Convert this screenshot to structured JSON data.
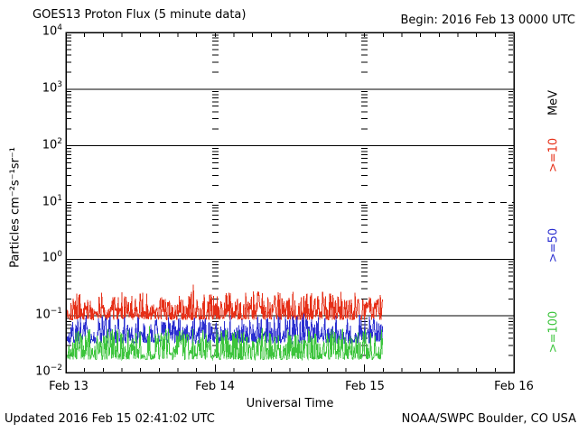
{
  "footer": {
    "updated": "Updated 2016 Feb 15 02:41:02 UTC",
    "credit": "NOAA/SWPC Boulder, CO USA"
  },
  "chart_data": {
    "type": "line",
    "title": "GOES13 Proton Flux (5 minute data)",
    "begin_label": "Begin: 2016 Feb 13 0000 UTC",
    "xlabel": "Universal Time",
    "ylabel": "Particles cm⁻²s⁻¹sr⁻¹",
    "right_axis_label": "MeV",
    "x_tick_labels": [
      "Feb 13",
      "Feb 14",
      "Feb 15",
      "Feb 16"
    ],
    "x_range_days": 3,
    "x_minor_tick_hours": 3,
    "y_scale": "log",
    "y_exponent_ticks": [
      4,
      3,
      2,
      1,
      0,
      -1,
      -2
    ],
    "ylim": [
      0.01,
      10000
    ],
    "grid": {
      "solid_decades": [
        3,
        2,
        0,
        -1
      ],
      "dashed_decades": [
        1
      ],
      "day_boundary_tick_columns": [
        1,
        2
      ]
    },
    "threshold_line": {
      "value": 10,
      "style": "dashed"
    },
    "interval_minutes": 5,
    "data_start_days": 0,
    "data_end_days": 2.12,
    "legend_position": "right",
    "series": [
      {
        "name": ">=10 MeV",
        "legend": ">=10",
        "color": "#e62f17",
        "baseline": 0.085,
        "spread": 3.2,
        "spike_prob": 0.02,
        "spike_mult": 1.6,
        "seed": 101,
        "approx_mean": 0.12,
        "approx_range": [
          0.085,
          0.45
        ]
      },
      {
        "name": ">=50 MeV",
        "legend": ">=50",
        "color": "#2b2fd0",
        "baseline": 0.033,
        "spread": 3.0,
        "spike_prob": 0.02,
        "spike_mult": 1.5,
        "seed": 202,
        "approx_mean": 0.05,
        "approx_range": [
          0.033,
          0.15
        ]
      },
      {
        "name": ">=100 MeV",
        "legend": ">=100",
        "color": "#3cc43c",
        "baseline": 0.017,
        "spread": 3.5,
        "spike_prob": 0.02,
        "spike_mult": 1.7,
        "seed": 303,
        "approx_mean": 0.026,
        "approx_range": [
          0.015,
          0.1
        ]
      }
    ]
  }
}
